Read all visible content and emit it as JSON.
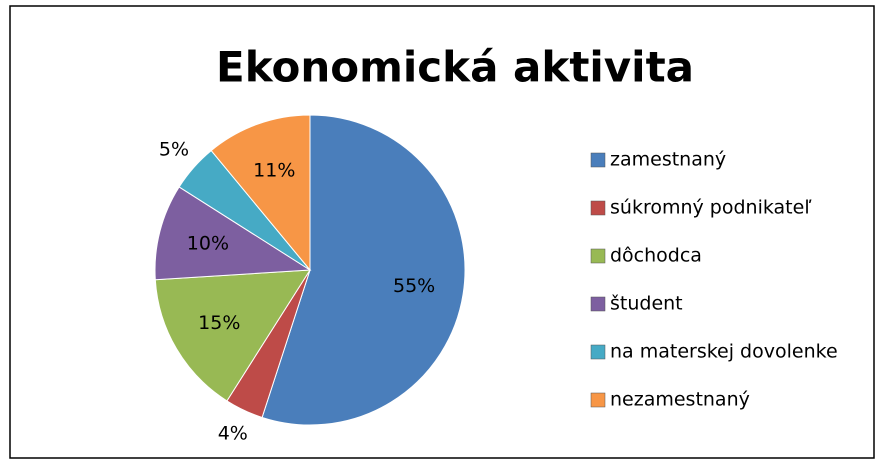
{
  "chart_data": {
    "type": "pie",
    "title": "Ekonomická aktivita",
    "categories": [
      "zamestnaný",
      "súkromný podnikateľ",
      "dôchodca",
      "študent",
      "na materskej dovolenke",
      "nezamestnaný"
    ],
    "values": [
      55,
      4,
      15,
      10,
      5,
      11
    ],
    "value_labels": [
      "55%",
      "4%",
      "15%",
      "10%",
      "5%",
      "11%"
    ],
    "colors": [
      "#4a7ebb",
      "#be4b48",
      "#98b954",
      "#7d5fa0",
      "#46aac5",
      "#f79646"
    ],
    "legend": "right"
  }
}
